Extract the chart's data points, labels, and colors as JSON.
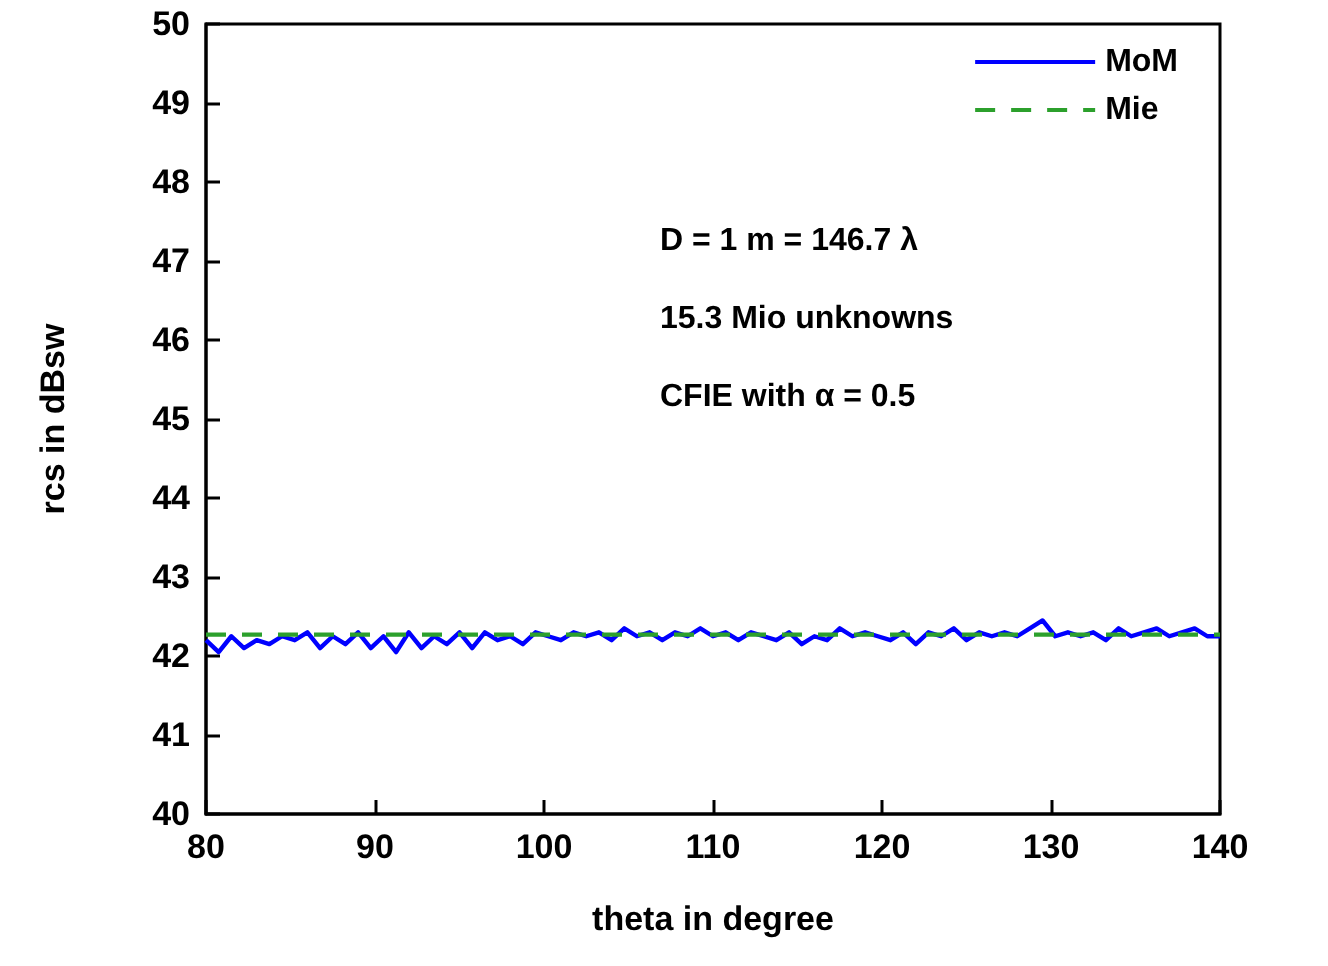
{
  "chart_data": {
    "type": "line",
    "xlabel": "theta in degree",
    "ylabel": "rcs in dBsw",
    "annotations": [
      "D = 1 m = 146.7 λ",
      "15.3 Mio unknowns",
      "CFIE with α = 0.5"
    ],
    "xlim": [
      80,
      140
    ],
    "ylim": [
      40,
      50
    ],
    "xticks": [
      80,
      90,
      100,
      110,
      120,
      130,
      140
    ],
    "yticks": [
      40,
      41,
      42,
      43,
      44,
      45,
      46,
      47,
      48,
      49,
      50
    ],
    "grid": false,
    "legend": "top right",
    "series": [
      {
        "name": "MoM",
        "color": "#0000ff",
        "line_style": "solid",
        "x": [
          80,
          80.75,
          81.5,
          82.25,
          83,
          83.75,
          84.5,
          85.25,
          86,
          86.75,
          87.5,
          88.25,
          89,
          89.75,
          90.5,
          91.25,
          92,
          92.75,
          93.5,
          94.25,
          95,
          95.75,
          96.5,
          97.25,
          98,
          98.75,
          99.5,
          100.25,
          101,
          101.75,
          102.5,
          103.25,
          104,
          104.75,
          105.5,
          106.25,
          107,
          107.75,
          108.5,
          109.25,
          110,
          110.75,
          111.5,
          112.25,
          113,
          113.75,
          114.5,
          115.25,
          116,
          116.75,
          117.5,
          118.25,
          119,
          119.75,
          120.5,
          121.25,
          122,
          122.75,
          123.5,
          124.25,
          125,
          125.75,
          126.5,
          127.25,
          128,
          128.75,
          129.5,
          130.25,
          131,
          131.75,
          132.5,
          133.25,
          134,
          134.75,
          135.5,
          136.25,
          137,
          137.75,
          138.5,
          139.25,
          140
        ],
        "values": [
          42.2,
          42.05,
          42.25,
          42.1,
          42.2,
          42.15,
          42.25,
          42.2,
          42.3,
          42.1,
          42.25,
          42.15,
          42.3,
          42.1,
          42.25,
          42.05,
          42.3,
          42.1,
          42.25,
          42.15,
          42.3,
          42.1,
          42.3,
          42.2,
          42.25,
          42.15,
          42.3,
          42.25,
          42.2,
          42.3,
          42.25,
          42.3,
          42.2,
          42.35,
          42.25,
          42.3,
          42.2,
          42.3,
          42.25,
          42.35,
          42.25,
          42.3,
          42.2,
          42.3,
          42.25,
          42.2,
          42.3,
          42.15,
          42.25,
          42.2,
          42.35,
          42.25,
          42.3,
          42.25,
          42.2,
          42.3,
          42.15,
          42.3,
          42.25,
          42.35,
          42.2,
          42.3,
          42.25,
          42.3,
          42.25,
          42.35,
          42.45,
          42.25,
          42.3,
          42.25,
          42.3,
          42.2,
          42.35,
          42.25,
          42.3,
          42.35,
          42.25,
          42.3,
          42.35,
          42.25,
          42.25
        ]
      },
      {
        "name": "Mie",
        "color": "#2ca02c",
        "line_style": "dashed",
        "x": [
          80,
          140
        ],
        "values": [
          42.27,
          42.27
        ]
      }
    ]
  }
}
